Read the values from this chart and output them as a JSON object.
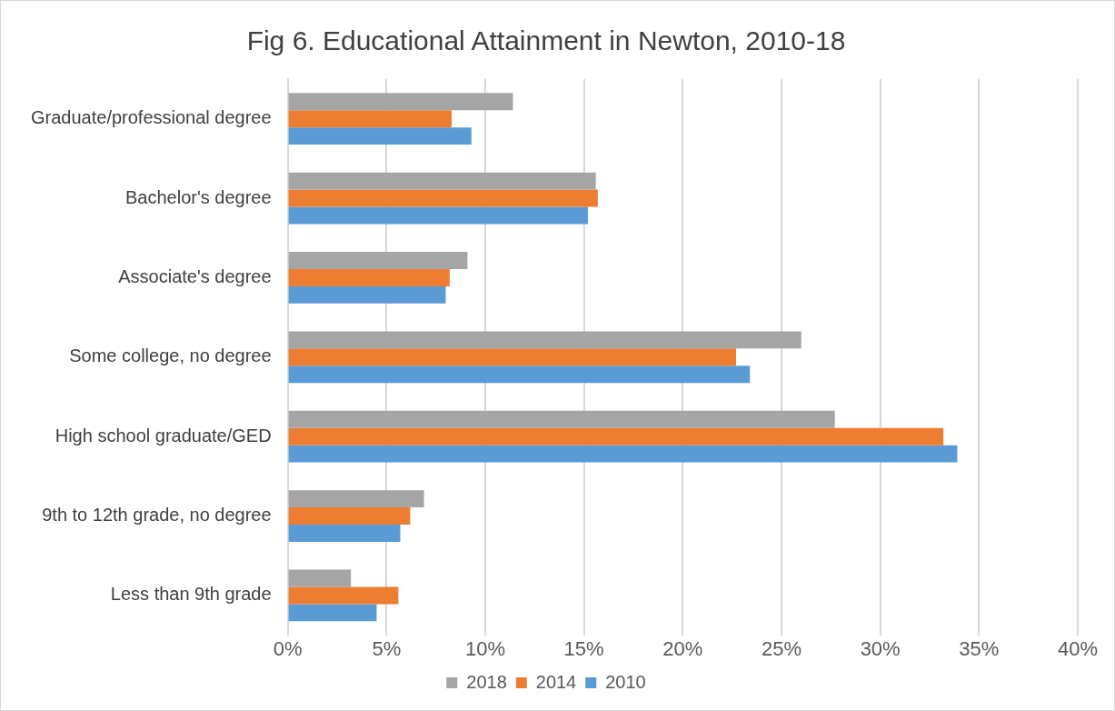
{
  "chart_data": {
    "type": "bar",
    "orientation": "horizontal",
    "title": "Fig 6. Educational Attainment in Newton, 2010-18",
    "categories": [
      "Graduate/professional degree",
      "Bachelor's degree",
      "Associate's degree",
      "Some college, no degree",
      "High school graduate/GED",
      "9th to 12th grade, no degree",
      "Less than 9th grade"
    ],
    "series": [
      {
        "name": "2018",
        "color": "#a5a5a5",
        "values": [
          11.4,
          15.6,
          9.1,
          26.0,
          27.7,
          6.9,
          3.2
        ]
      },
      {
        "name": "2014",
        "color": "#ed7d31",
        "values": [
          8.3,
          15.7,
          8.2,
          22.7,
          33.2,
          6.2,
          5.6
        ]
      },
      {
        "name": "2010",
        "color": "#5b9bd5",
        "values": [
          9.3,
          15.2,
          8.0,
          23.4,
          33.9,
          5.7,
          4.5
        ]
      }
    ],
    "xlim": [
      0,
      40
    ],
    "xticks": [
      {
        "value": 0,
        "label": "0%"
      },
      {
        "value": 5,
        "label": "5%"
      },
      {
        "value": 10,
        "label": "10%"
      },
      {
        "value": 15,
        "label": "15%"
      },
      {
        "value": 20,
        "label": "20%"
      },
      {
        "value": 25,
        "label": "25%"
      },
      {
        "value": 30,
        "label": "30%"
      },
      {
        "value": 35,
        "label": "35%"
      },
      {
        "value": 40,
        "label": "40%"
      }
    ],
    "grid": "x",
    "legend": "bottom"
  }
}
